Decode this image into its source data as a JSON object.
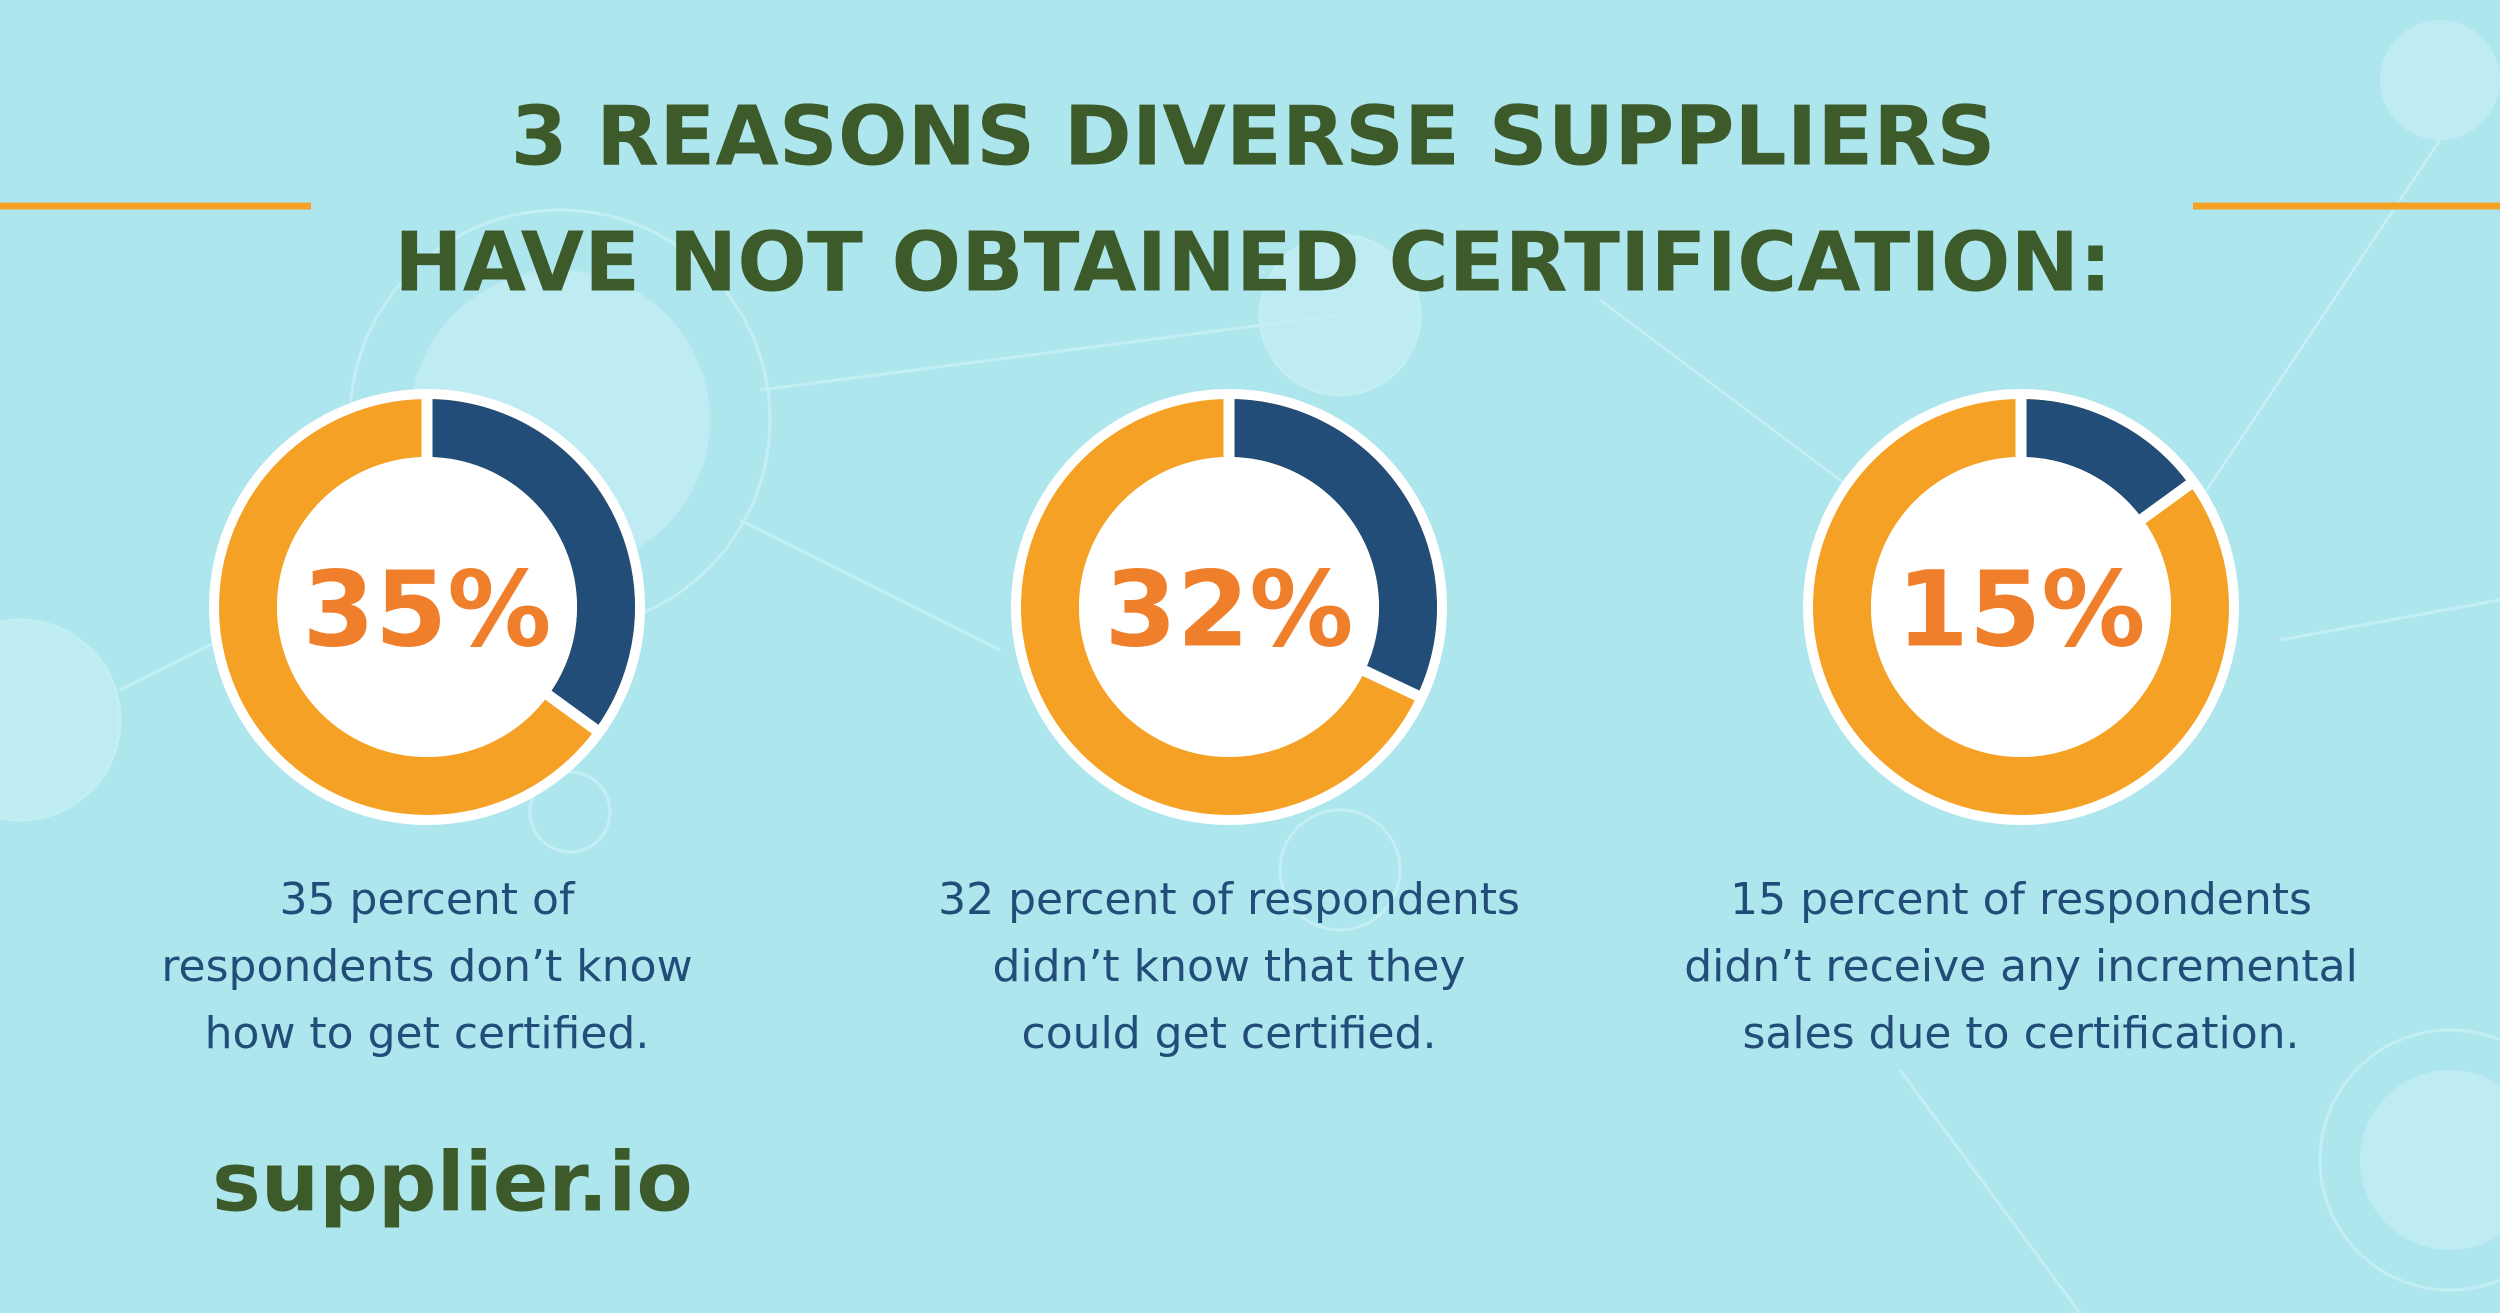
{
  "header": {
    "title": [
      "3 REASONS DIVERSE SUPPLIERS",
      "HAVE NOT OBTAINED CERTIFICATION:"
    ]
  },
  "chart_data": [
    {
      "type": "donut",
      "values": [
        35
      ],
      "value_labels": [
        "35%"
      ],
      "segment_color": "#214d78",
      "ring_color": "#f5a125",
      "description": [
        "35 percent of",
        "respondents don’t know",
        "how to get certified."
      ]
    },
    {
      "type": "donut",
      "values": [
        32
      ],
      "value_labels": [
        "32%"
      ],
      "segment_color": "#214d78",
      "ring_color": "#f5a125",
      "description": [
        "32 percent of respondents",
        "didn’t know that they",
        "could get certified."
      ]
    },
    {
      "type": "donut",
      "values": [
        15
      ],
      "value_labels": [
        "15%"
      ],
      "segment_color": "#214d78",
      "ring_color": "#f5a125",
      "description": [
        "15 percent of respondents",
        "didn’t receive any incremental",
        "sales due to certification."
      ]
    }
  ],
  "brand": "supplier.io"
}
